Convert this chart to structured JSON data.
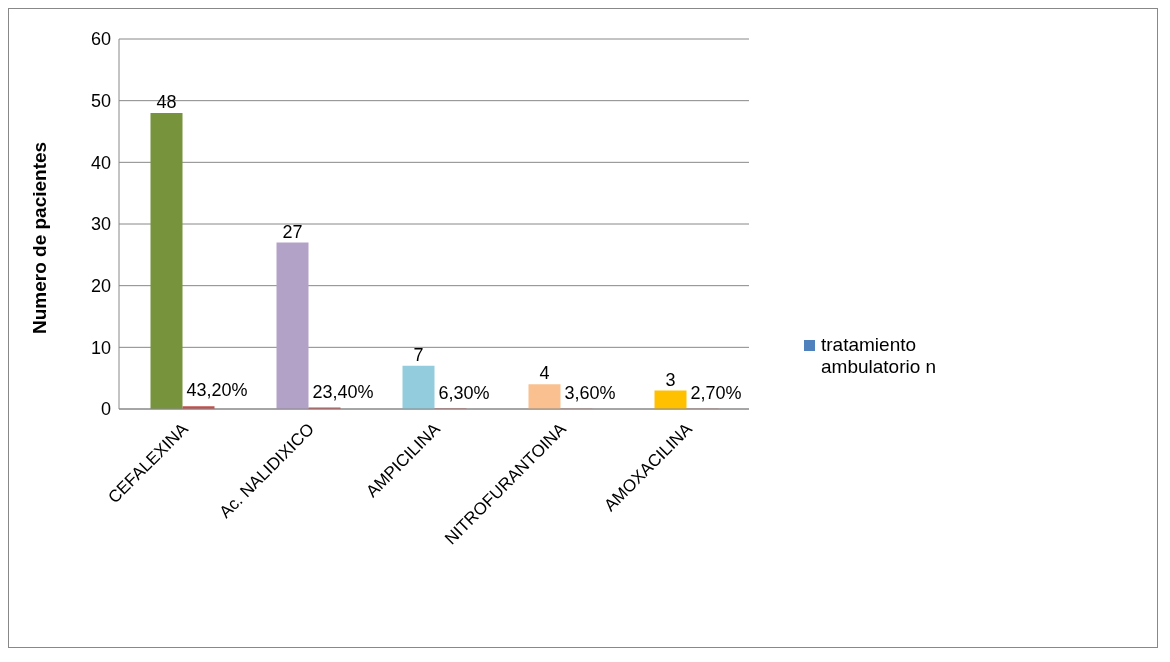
{
  "chart_data": {
    "type": "bar",
    "ylabel": "Numero de pacientes",
    "categories": [
      "CEFALEXINA",
      "Ac. NALIDIXICO",
      "AMPICILINA",
      "NITROFURANTOINA",
      "AMOXACILINA"
    ],
    "series": [
      {
        "name": "tratamiento ambulatorio n",
        "color": "#4f81bd",
        "colors": [
          "#77933c",
          "#b3a2c7",
          "#93cddd",
          "#fac090",
          "#ffc000"
        ],
        "values": [
          48,
          27,
          7,
          4,
          3
        ],
        "data_labels": true
      },
      {
        "color": "#c0504d",
        "values": [
          0.432,
          0.234,
          0.063,
          0.036,
          0.027
        ],
        "value_labels": [
          "43,20%",
          "23,40%",
          "6,30%",
          "3,60%",
          "2,70%"
        ]
      }
    ],
    "ylim": [
      0,
      60
    ],
    "yticks": [
      0,
      10,
      20,
      30,
      40,
      50,
      60
    ],
    "grid": "y",
    "legend": "right"
  }
}
